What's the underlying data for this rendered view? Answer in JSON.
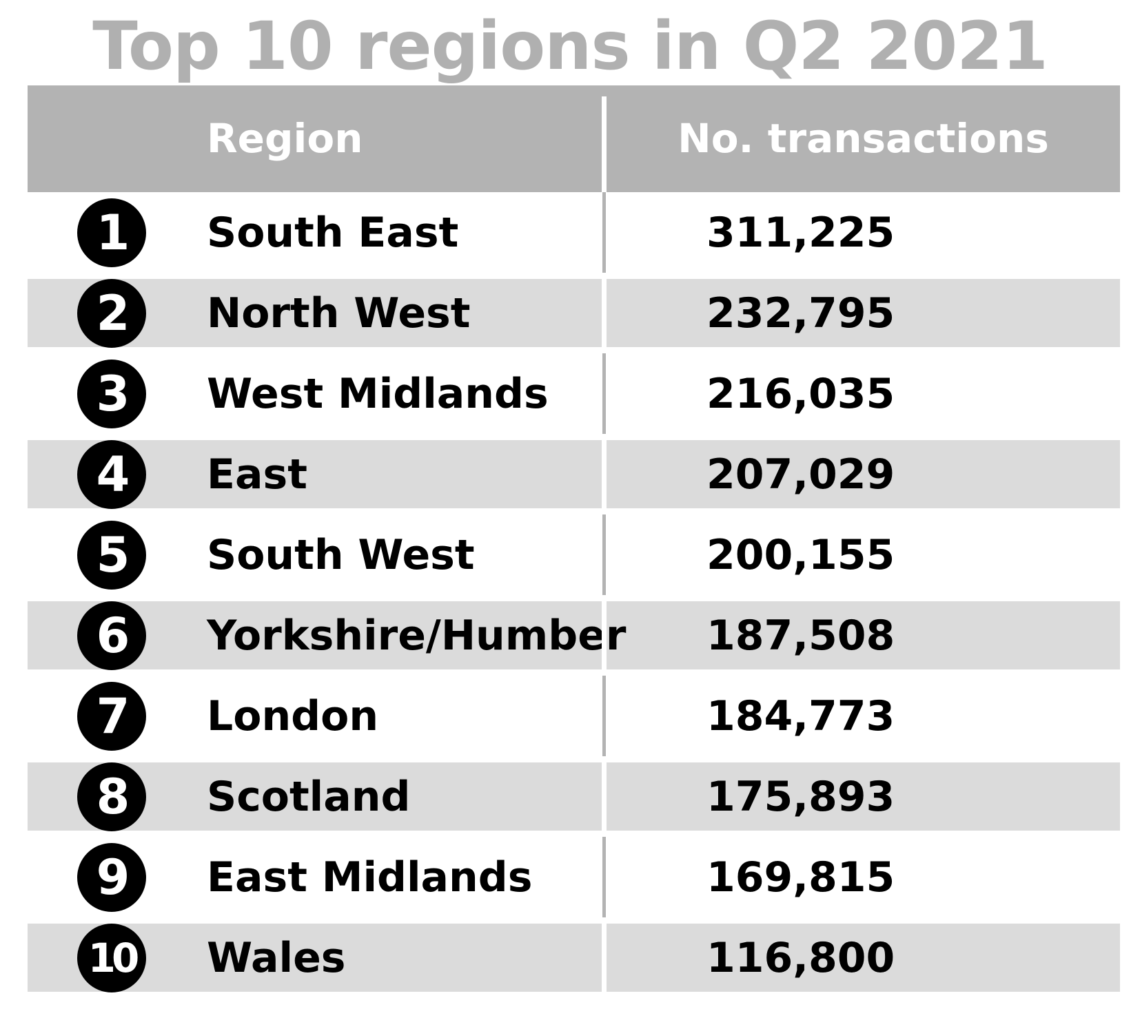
{
  "title": "Top 10 regions in Q2 2021",
  "columns": {
    "region": "Region",
    "count": "No. transactions"
  },
  "chart_data": {
    "type": "table",
    "title": "Top 10 regions in Q2 2021",
    "columns": [
      "Region",
      "No. transactions"
    ],
    "rows": [
      {
        "rank": "1",
        "region": "South East",
        "count": "311,225",
        "value": 311225
      },
      {
        "rank": "2",
        "region": "North West",
        "count": "232,795",
        "value": 232795
      },
      {
        "rank": "3",
        "region": "West Midlands",
        "count": "216,035",
        "value": 216035
      },
      {
        "rank": "4",
        "region": "East",
        "count": "207,029",
        "value": 207029
      },
      {
        "rank": "5",
        "region": "South West",
        "count": "200,155",
        "value": 200155
      },
      {
        "rank": "6",
        "region": "Yorkshire/Humber",
        "count": "187,508",
        "value": 187508
      },
      {
        "rank": "7",
        "region": "London",
        "count": "184,773",
        "value": 184773
      },
      {
        "rank": "8",
        "region": "Scotland",
        "count": "175,893",
        "value": 175893
      },
      {
        "rank": "9",
        "region": "East Midlands",
        "count": "169,815",
        "value": 169815
      },
      {
        "rank": "10",
        "region": "Wales",
        "count": "116,800",
        "value": 116800
      }
    ]
  },
  "colors": {
    "header_bg": "#b3b3b3",
    "shaded_row_bg": "#dbdbdb",
    "title": "#b0b0b0",
    "badge": "#000000"
  }
}
